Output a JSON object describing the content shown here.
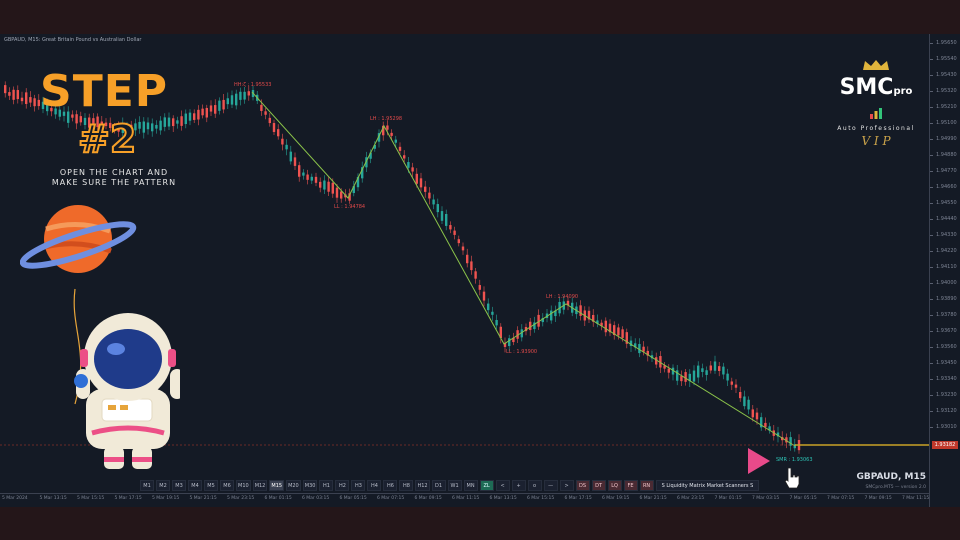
{
  "chart": {
    "symbol_line": "GBPAUD, M15:  Great Britain Pound vs Australian Dollar",
    "pair_label": "GBPAUD, M15",
    "version_label": "SMCpro.MT5 — version 2.0",
    "current_price": "1.93182",
    "price_ticks": [
      "1.95650",
      "1.95540",
      "1.95430",
      "1.95320",
      "1.95210",
      "1.95100",
      "1.94990",
      "1.94880",
      "1.94770",
      "1.94660",
      "1.94550",
      "1.94440",
      "1.94330",
      "1.94220",
      "1.94110",
      "1.94000",
      "1.93890",
      "1.93780",
      "1.93670",
      "1.93560",
      "1.93450",
      "1.93340",
      "1.93230",
      "1.93120",
      "1.93010"
    ],
    "time_ticks": [
      "5 Mar 2024",
      "5 Mar 13:15",
      "5 Mar 15:15",
      "5 Mar 17:15",
      "5 Mar 19:15",
      "5 Mar 21:15",
      "5 Mar 23:15",
      "6 Mar 01:15",
      "6 Mar 03:15",
      "6 Mar 05:15",
      "6 Mar 07:15",
      "6 Mar 09:15",
      "6 Mar 11:15",
      "6 Mar 13:15",
      "6 Mar 15:15",
      "6 Mar 17:15",
      "6 Mar 19:15",
      "6 Mar 21:15",
      "6 Mar 23:15",
      "7 Mar 01:15",
      "7 Mar 03:15",
      "7 Mar 05:15",
      "7 Mar 07:15",
      "7 Mar 09:15",
      "7 Mar 11:15"
    ],
    "labels": {
      "hh": "HH:ζ : 1.95533",
      "ll1": "LL : 1.94784",
      "lh1": "LH : 1.95298",
      "lh2": "LH : 1.94090",
      "ll2": "LL : 1.93900",
      "smr": "SMR : 1.93063"
    },
    "colors": {
      "bull": "#26a69a",
      "bear": "#ef5350",
      "zigzag": "#8bc34a",
      "level": "#c9a227"
    }
  },
  "timeframes": [
    {
      "label": "M1"
    },
    {
      "label": "M2"
    },
    {
      "label": "M3"
    },
    {
      "label": "M4"
    },
    {
      "label": "M5"
    },
    {
      "label": "M6"
    },
    {
      "label": "M10"
    },
    {
      "label": "M12"
    },
    {
      "label": "M15",
      "active": true
    },
    {
      "label": "M20"
    },
    {
      "label": "M30"
    },
    {
      "label": "H1"
    },
    {
      "label": "H2"
    },
    {
      "label": "H3"
    },
    {
      "label": "H4"
    },
    {
      "label": "H6"
    },
    {
      "label": "H8"
    },
    {
      "label": "H12"
    },
    {
      "label": "D1"
    },
    {
      "label": "W1"
    },
    {
      "label": "MN"
    }
  ],
  "tools": [
    {
      "label": "ZL",
      "style": "green"
    },
    {
      "label": "<"
    },
    {
      "label": "+"
    },
    {
      "label": "o"
    },
    {
      "label": "—"
    },
    {
      "label": ">"
    },
    {
      "label": "DS",
      "style": "red"
    },
    {
      "label": "DT",
      "style": "red"
    },
    {
      "label": "LQ",
      "style": "red"
    },
    {
      "label": "FE",
      "style": "red"
    },
    {
      "label": "RN",
      "style": "red"
    },
    {
      "label": "S Liquidity Matrix Market Scanners S",
      "style": "wide"
    }
  ],
  "promo": {
    "title": "STEP",
    "number": "#2",
    "description": "OPEN THE CHART AND MAKE SURE THE PATTERN"
  },
  "logo": {
    "main": "SMC",
    "sup": "pro",
    "sub": "Auto Professional",
    "vip": "V I P"
  },
  "icons": [
    "crown-icon",
    "planet-illustration",
    "astronaut-illustration",
    "play-arrow-icon",
    "hand-cursor-icon"
  ]
}
